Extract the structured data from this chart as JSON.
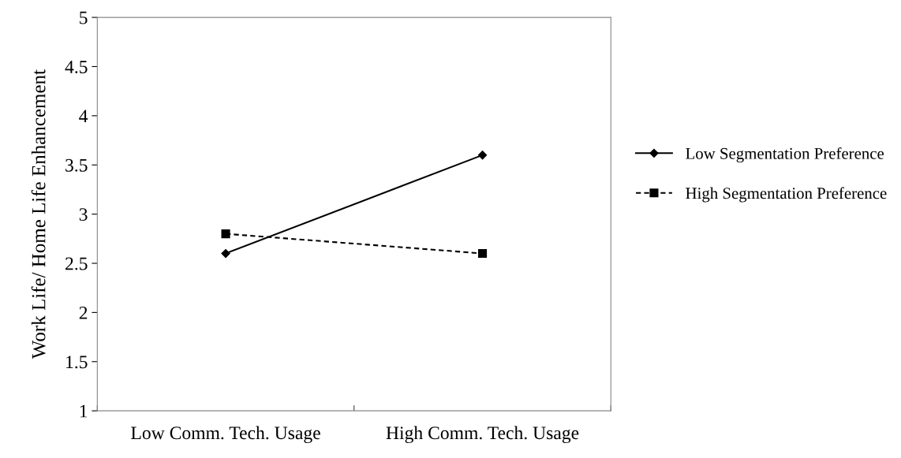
{
  "chart_data": {
    "type": "line",
    "ylabel": "Work Life/ Home Life Enhancement",
    "categories": [
      "Low Comm. Tech. Usage",
      "High Comm. Tech. Usage"
    ],
    "series": [
      {
        "name": "Low Segmentation Preference",
        "color": "#000000",
        "values": [
          2.6,
          3.6
        ],
        "marker": "diamond",
        "line_style": "solid"
      },
      {
        "name": "High Segmentation Preference",
        "color": "#000000",
        "values": [
          2.8,
          2.6
        ],
        "marker": "square",
        "line_style": "dashed"
      }
    ],
    "ylim": [
      1,
      5
    ],
    "yticks": [
      1,
      1.5,
      2,
      2.5,
      3,
      3.5,
      4,
      4.5,
      5
    ],
    "grid": false,
    "legend": "right"
  }
}
